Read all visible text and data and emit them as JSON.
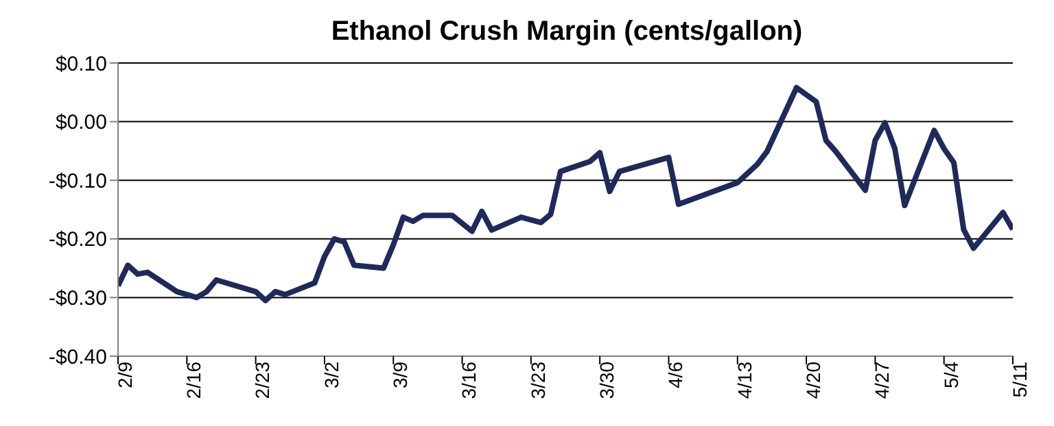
{
  "chart_data": {
    "type": "line",
    "title": "Ethanol Crush Margin (cents/gallon)",
    "x": [
      "--02-09",
      "--02-10",
      "--02-11",
      "--02-12",
      "--02-15",
      "--02-17",
      "--02-18",
      "--02-19",
      "--02-23",
      "--02-24",
      "--02-25",
      "--02-26",
      "--03-01",
      "--03-02",
      "--03-03",
      "--03-04",
      "--03-05",
      "--03-08",
      "--03-09",
      "--03-10",
      "--03-11",
      "--03-12",
      "--03-15",
      "--03-17",
      "--03-18",
      "--03-19",
      "--03-22",
      "--03-24",
      "--03-25",
      "--03-26",
      "--03-29",
      "--03-30",
      "--03-31",
      "--04-01",
      "--04-06",
      "--04-07",
      "--04-13",
      "--04-15",
      "--04-16",
      "--04-19",
      "--04-21",
      "--04-22",
      "--04-23",
      "--04-26",
      "--04-27",
      "--04-28",
      "--04-29",
      "--04-30",
      "--05-03",
      "--05-04",
      "--05-05",
      "--05-06",
      "--05-07",
      "--05-10",
      "--05-11"
    ],
    "series": [
      {
        "color": "#1f2a5a",
        "values": [
          -0.28,
          -0.245,
          -0.26,
          -0.257,
          -0.29,
          -0.3,
          -0.29,
          -0.27,
          -0.29,
          -0.305,
          -0.29,
          -0.295,
          -0.275,
          -0.23,
          -0.2,
          -0.205,
          -0.245,
          -0.25,
          -0.21,
          -0.163,
          -0.17,
          -0.16,
          -0.16,
          -0.187,
          -0.153,
          -0.185,
          -0.163,
          -0.172,
          -0.158,
          -0.085,
          -0.068,
          -0.053,
          -0.119,
          -0.085,
          -0.061,
          -0.141,
          -0.104,
          -0.073,
          -0.051,
          0.058,
          0.034,
          -0.032,
          -0.051,
          -0.117,
          -0.032,
          -0.002,
          -0.046,
          -0.143,
          -0.015,
          -0.046,
          -0.07,
          -0.184,
          -0.216,
          -0.155,
          -0.184
        ]
      }
    ],
    "xlim": [
      "--02-09",
      "--05-11"
    ],
    "xticks": [
      {
        "value": "--02-09",
        "label": "2/9"
      },
      {
        "value": "--02-16",
        "label": "2/16"
      },
      {
        "value": "--02-23",
        "label": "2/23"
      },
      {
        "value": "--03-02",
        "label": "3/2"
      },
      {
        "value": "--03-09",
        "label": "3/9"
      },
      {
        "value": "--03-16",
        "label": "3/16"
      },
      {
        "value": "--03-23",
        "label": "3/23"
      },
      {
        "value": "--03-30",
        "label": "3/30"
      },
      {
        "value": "--04-06",
        "label": "4/6"
      },
      {
        "value": "--04-13",
        "label": "4/13"
      },
      {
        "value": "--04-20",
        "label": "4/20"
      },
      {
        "value": "--04-27",
        "label": "4/27"
      },
      {
        "value": "--05-04",
        "label": "5/4"
      },
      {
        "value": "--05-11",
        "label": "5/11"
      }
    ],
    "ylim": [
      -0.4,
      0.1
    ],
    "yticks": [
      {
        "value": -0.4,
        "label": "-$0.40"
      },
      {
        "value": -0.3,
        "label": "-$0.30"
      },
      {
        "value": -0.2,
        "label": "-$0.20"
      },
      {
        "value": -0.1,
        "label": "-$0.10"
      },
      {
        "value": 0,
        "label": "$0.00"
      },
      {
        "value": 0.1,
        "label": "$0.10"
      }
    ],
    "grid": "y",
    "legend": false,
    "marker": "none",
    "line_style": "solid"
  }
}
